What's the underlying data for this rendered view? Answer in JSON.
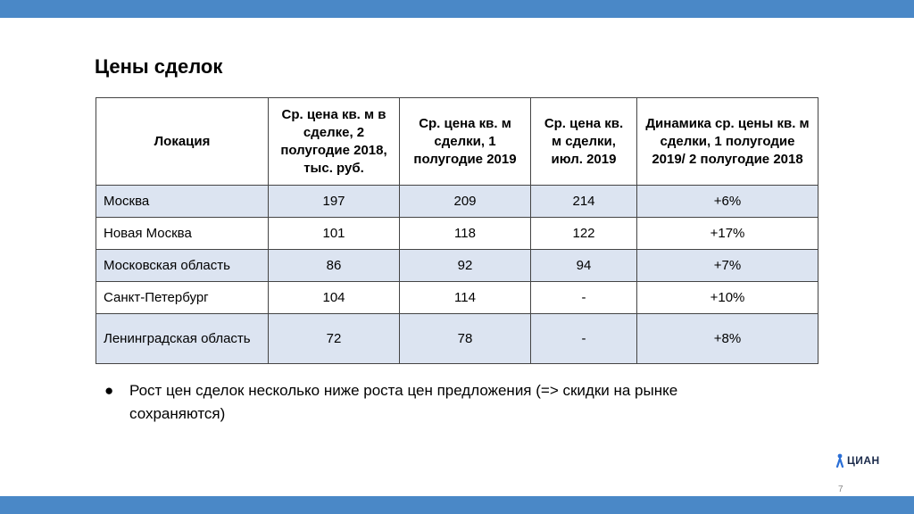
{
  "slide": {
    "title": "Цены сделок",
    "page_number": "7"
  },
  "table": {
    "headers": [
      "Локация",
      "Ср. цена кв. м в сделке, 2 полугодие 2018, тыс. руб.",
      "Ср. цена кв. м сделки, 1 полугодие 2019",
      "Ср. цена кв. м сделки, июл. 2019",
      "Динамика ср. цены кв. м сделки, 1 полугодие 2019/ 2 полугодие 2018"
    ],
    "rows": [
      [
        "Москва",
        "197",
        "209",
        "214",
        "+6%"
      ],
      [
        "Новая Москва",
        "101",
        "118",
        "122",
        "+17%"
      ],
      [
        "Московская область",
        "86",
        "92",
        "94",
        "+7%"
      ],
      [
        "Санкт-Петербург",
        "104",
        "114",
        "-",
        "+10%"
      ],
      [
        "Ленинградская область",
        "72",
        "78",
        "-",
        "+8%"
      ]
    ]
  },
  "bullets": [
    "Рост цен сделок несколько ниже роста цен предложения (=> скидки на рынке сохраняются)"
  ],
  "logo": {
    "text": "ЦИАН",
    "icon": "person-logo-icon"
  },
  "colors": {
    "bar": "#4a88c7",
    "row_shade": "#dce4f1"
  }
}
